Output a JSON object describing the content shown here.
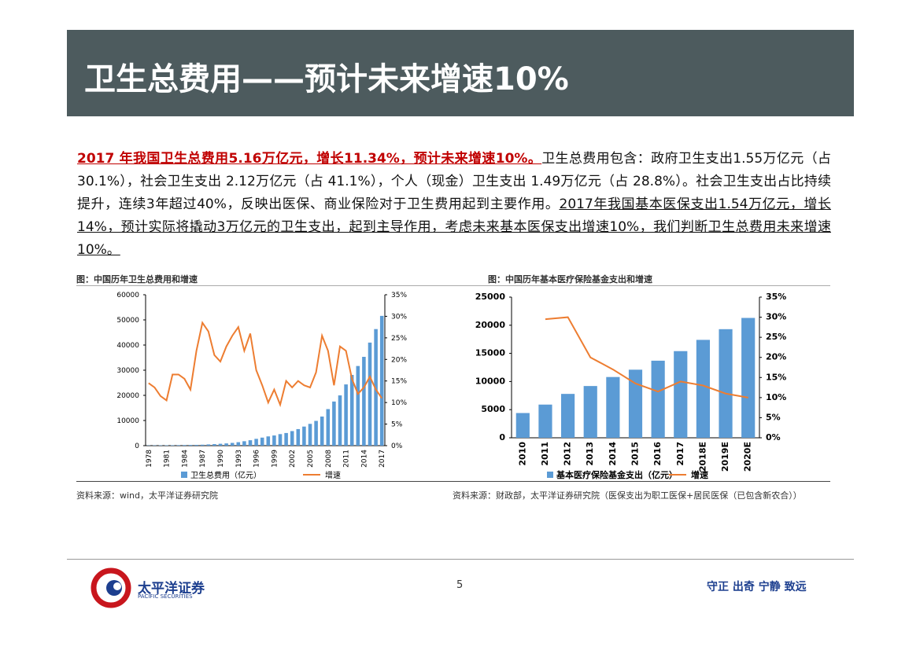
{
  "header": {
    "title": "卫生总费用——预计未来增速10%"
  },
  "paragraph": {
    "highlight": "2017 年我国卫生总费用5.16万亿元，增长11.34%，预计未来增速10%。",
    "text1": "卫生总费用包含：政府卫生支出1.55万亿元（占 30.1%），社会卫生支出 2.12万亿元（占 41.1%），个人（现金）卫生支出 1.49万亿元（占 28.8%）。社会卫生支出占比持续提升，连续3年超过40%，反映出医保、商业保险对于卫生费用起到主要作用。",
    "underlined": "2017年我国基本医保支出1.54万亿元，增长14%，预计实际将撬动3万亿元的卫生支出，起到主导作用，考虑未来基本医保支出增速10%，我们判断卫生总费用未来增速10%。"
  },
  "chart_data": [
    {
      "type": "combo",
      "title": "图：中国历年卫生总费用和增速",
      "source": "资料来源：wind，太平洋证券研究院",
      "categories": [
        "1978",
        null,
        null,
        "1981",
        null,
        null,
        "1984",
        null,
        null,
        "1987",
        null,
        null,
        "1990",
        null,
        null,
        "1993",
        null,
        null,
        "1996",
        null,
        null,
        "1999",
        null,
        null,
        "2002",
        null,
        null,
        "2005",
        null,
        null,
        "2008",
        null,
        null,
        "2011",
        null,
        null,
        "2014",
        null,
        null,
        "2017"
      ],
      "series": [
        {
          "name": "卫生总费用（亿元）",
          "type": "bar",
          "color": "#5b9bd5",
          "values": [
            110,
            126,
            143,
            160,
            177,
            207,
            242,
            279,
            316,
            379,
            488,
            615,
            747,
            893,
            1097,
            1378,
            1761,
            2155,
            2709,
            3197,
            3679,
            4048,
            4587,
            5026,
            5791,
            6584,
            7590,
            8660,
            9843,
            11574,
            14535,
            17542,
            19980,
            24346,
            28119,
            31669,
            35312,
            40975,
            46345,
            51599
          ]
        },
        {
          "name": "增速",
          "type": "line",
          "axis": "y2",
          "color": "#ed7d31",
          "values": [
            14.5,
            13.5,
            11.5,
            10.5,
            16.5,
            16.5,
            15.5,
            13,
            22,
            28.5,
            26.5,
            21,
            19.5,
            23,
            25.5,
            27.5,
            22,
            26,
            17.5,
            14,
            10,
            13,
            9.5,
            15,
            13.5,
            15,
            14,
            13.5,
            17,
            25.5,
            22,
            14,
            23,
            22,
            15.5,
            12,
            13.5,
            16,
            13,
            11
          ]
        }
      ],
      "ylim": [
        0,
        60000
      ],
      "yticks": [
        0,
        10000,
        20000,
        30000,
        40000,
        50000,
        60000
      ],
      "y2lim": [
        0,
        35
      ],
      "y2ticks": [
        {
          "value": 0,
          "label": "0%"
        },
        {
          "value": 5,
          "label": "5%"
        },
        {
          "value": 10,
          "label": "10%"
        },
        {
          "value": 15,
          "label": "15%"
        },
        {
          "value": 20,
          "label": "20%"
        },
        {
          "value": 25,
          "label": "25%"
        },
        {
          "value": 30,
          "label": "30%"
        },
        {
          "value": 35,
          "label": "35%"
        }
      ]
    },
    {
      "type": "combo",
      "title": "图：中国历年基本医疗保险基金支出和增速",
      "source": "资料来源：财政部，太平洋证券研究院（医保支出为职工医保+居民医保（已包含新农合））",
      "categories": [
        "2010",
        "2011",
        "2012",
        "2013",
        "2014",
        "2015",
        "2016",
        "2017",
        "2018E",
        "2019E",
        "2020E"
      ],
      "series": [
        {
          "name": "基本医疗保险基金支出（亿元）",
          "type": "bar",
          "color": "#5b9bd5",
          "values": [
            4400,
            5900,
            7800,
            9200,
            10800,
            12100,
            13700,
            15400,
            17400,
            19300,
            21300
          ]
        },
        {
          "name": "增速",
          "type": "line",
          "axis": "y2",
          "color": "#ed7d31",
          "values": [
            null,
            29.5,
            30,
            20,
            17,
            13.5,
            11.5,
            14,
            13,
            11,
            10
          ]
        }
      ],
      "ylim": [
        0,
        25000
      ],
      "yticks": [
        0,
        5000,
        10000,
        15000,
        20000,
        25000
      ],
      "y2lim": [
        0,
        35
      ],
      "y2ticks": [
        {
          "value": 0,
          "label": "0%"
        },
        {
          "value": 5,
          "label": "5%"
        },
        {
          "value": 10,
          "label": "10%"
        },
        {
          "value": 15,
          "label": "15%"
        },
        {
          "value": 20,
          "label": "20%"
        },
        {
          "value": 25,
          "label": "25%"
        },
        {
          "value": 30,
          "label": "30%"
        },
        {
          "value": 35,
          "label": "35%"
        }
      ]
    }
  ],
  "footer": {
    "company": "太平洋证券",
    "company_en": "PACIFIC SECURITIES",
    "page": "5",
    "motto": "守正 出奇 宁静 致远"
  }
}
